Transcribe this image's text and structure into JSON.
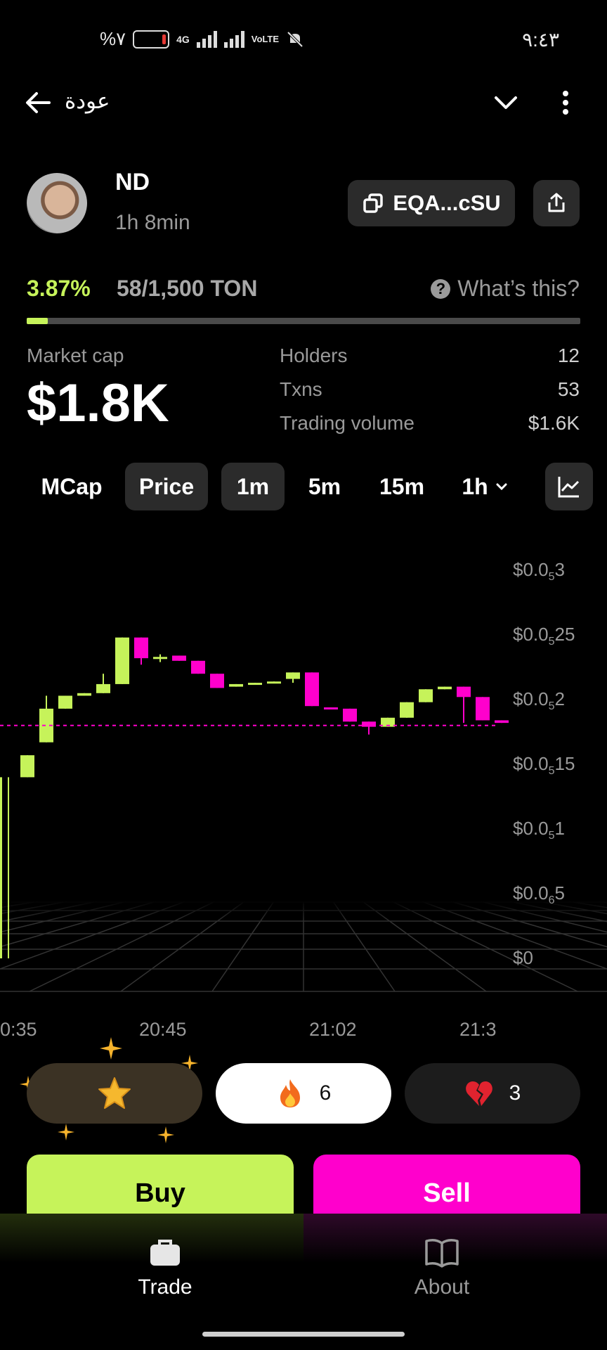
{
  "status_bar": {
    "battery_text": "%٧",
    "network": "4G",
    "volte": "VoLTE",
    "time": "٩:٤٣"
  },
  "header": {
    "back_label": "عودة"
  },
  "token": {
    "name": "ND",
    "age": "1h 8min",
    "address": "EQA...cSU"
  },
  "progress": {
    "percent_text": "3.87%",
    "raised_text": "58/1,500 TON",
    "whats_this": "What’s this?",
    "fraction": 0.0387
  },
  "stats": {
    "market_cap_label": "Market cap",
    "market_cap_value": "$1.8K",
    "holders_label": "Holders",
    "holders_value": "12",
    "txns_label": "Txns",
    "txns_value": "53",
    "volume_label": "Trading volume",
    "volume_value": "$1.6K"
  },
  "tabs": {
    "mcap": "MCap",
    "price": "Price",
    "m1": "1m",
    "m5": "5m",
    "m15": "15m",
    "h1": "1h"
  },
  "chart_data": {
    "type": "candlestick",
    "y_tick_labels": [
      {
        "prefix": "$0.0",
        "sub": "5",
        "suffix": "3",
        "value": 3e-06
      },
      {
        "prefix": "$0.0",
        "sub": "5",
        "suffix": "25",
        "value": 2.5e-06
      },
      {
        "prefix": "$0.0",
        "sub": "5",
        "suffix": "2",
        "value": 2e-06
      },
      {
        "prefix": "$0.0",
        "sub": "5",
        "suffix": "15",
        "value": 1.5e-06
      },
      {
        "prefix": "$0.0",
        "sub": "5",
        "suffix": "1",
        "value": 1e-06
      },
      {
        "prefix": "$0.0",
        "sub": "6",
        "suffix": "5",
        "value": 5e-07
      },
      {
        "prefix": "$0",
        "sub": "",
        "suffix": "",
        "value": 0
      }
    ],
    "x_tick_labels": [
      "0:35",
      "20:45",
      "21:02",
      "21:3"
    ],
    "current_price": 1.8e-06,
    "colors": {
      "up": "#c6f35a",
      "down": "#ff00cc"
    },
    "candles": [
      {
        "o": 0.0,
        "c": 1.4e-06,
        "h": 1.4e-06,
        "l": 0.0
      },
      {
        "o": 1.4e-06,
        "c": 1.57e-06,
        "h": 1.57e-06,
        "l": 1.4e-06
      },
      {
        "o": 1.67e-06,
        "c": 1.93e-06,
        "h": 2.03e-06,
        "l": 1.67e-06
      },
      {
        "o": 1.93e-06,
        "c": 2.03e-06,
        "h": 2.03e-06,
        "l": 1.93e-06
      },
      {
        "o": 2.03e-06,
        "c": 2.05e-06,
        "h": 2.05e-06,
        "l": 2.03e-06
      },
      {
        "o": 2.05e-06,
        "c": 2.12e-06,
        "h": 2.2e-06,
        "l": 2.05e-06
      },
      {
        "o": 2.12e-06,
        "c": 2.48e-06,
        "h": 2.48e-06,
        "l": 2.12e-06
      },
      {
        "o": 2.48e-06,
        "c": 2.32e-06,
        "h": 2.48e-06,
        "l": 2.27e-06
      },
      {
        "o": 2.33e-06,
        "c": 2.33e-06,
        "h": 2.35e-06,
        "l": 2.29e-06
      },
      {
        "o": 2.34e-06,
        "c": 2.3e-06,
        "h": 2.34e-06,
        "l": 2.3e-06
      },
      {
        "o": 2.3e-06,
        "c": 2.2e-06,
        "h": 2.3e-06,
        "l": 2.2e-06
      },
      {
        "o": 2.2e-06,
        "c": 2.09e-06,
        "h": 2.2e-06,
        "l": 2.09e-06
      },
      {
        "o": 2.1e-06,
        "c": 2.12e-06,
        "h": 2.12e-06,
        "l": 2.1e-06
      },
      {
        "o": 2.12e-06,
        "c": 2.13e-06,
        "h": 2.13e-06,
        "l": 2.12e-06
      },
      {
        "o": 2.13e-06,
        "c": 2.14e-06,
        "h": 2.14e-06,
        "l": 2.13e-06
      },
      {
        "o": 2.16e-06,
        "c": 2.21e-06,
        "h": 2.21e-06,
        "l": 2.13e-06
      },
      {
        "o": 2.21e-06,
        "c": 1.95e-06,
        "h": 2.21e-06,
        "l": 1.95e-06
      },
      {
        "o": 1.94e-06,
        "c": 1.93e-06,
        "h": 1.94e-06,
        "l": 1.93e-06
      },
      {
        "o": 1.93e-06,
        "c": 1.83e-06,
        "h": 1.93e-06,
        "l": 1.83e-06
      },
      {
        "o": 1.83e-06,
        "c": 1.79e-06,
        "h": 1.83e-06,
        "l": 1.73e-06
      },
      {
        "o": 1.79e-06,
        "c": 1.86e-06,
        "h": 1.86e-06,
        "l": 1.79e-06
      },
      {
        "o": 1.86e-06,
        "c": 1.98e-06,
        "h": 1.98e-06,
        "l": 1.86e-06
      },
      {
        "o": 1.98e-06,
        "c": 2.08e-06,
        "h": 2.08e-06,
        "l": 1.98e-06
      },
      {
        "o": 2.08e-06,
        "c": 2.1e-06,
        "h": 2.1e-06,
        "l": 2.08e-06
      },
      {
        "o": 2.1e-06,
        "c": 2.02e-06,
        "h": 2.1e-06,
        "l": 1.82e-06
      },
      {
        "o": 2.02e-06,
        "c": 1.84e-06,
        "h": 2.02e-06,
        "l": 1.84e-06
      },
      {
        "o": 1.84e-06,
        "c": 1.82e-06,
        "h": 1.84e-06,
        "l": 1.82e-06
      }
    ]
  },
  "reactions": {
    "fire_count": "6",
    "broken_heart_count": "3"
  },
  "actions": {
    "buy": "Buy",
    "sell": "Sell"
  },
  "nav": {
    "trade": "Trade",
    "about": "About"
  }
}
